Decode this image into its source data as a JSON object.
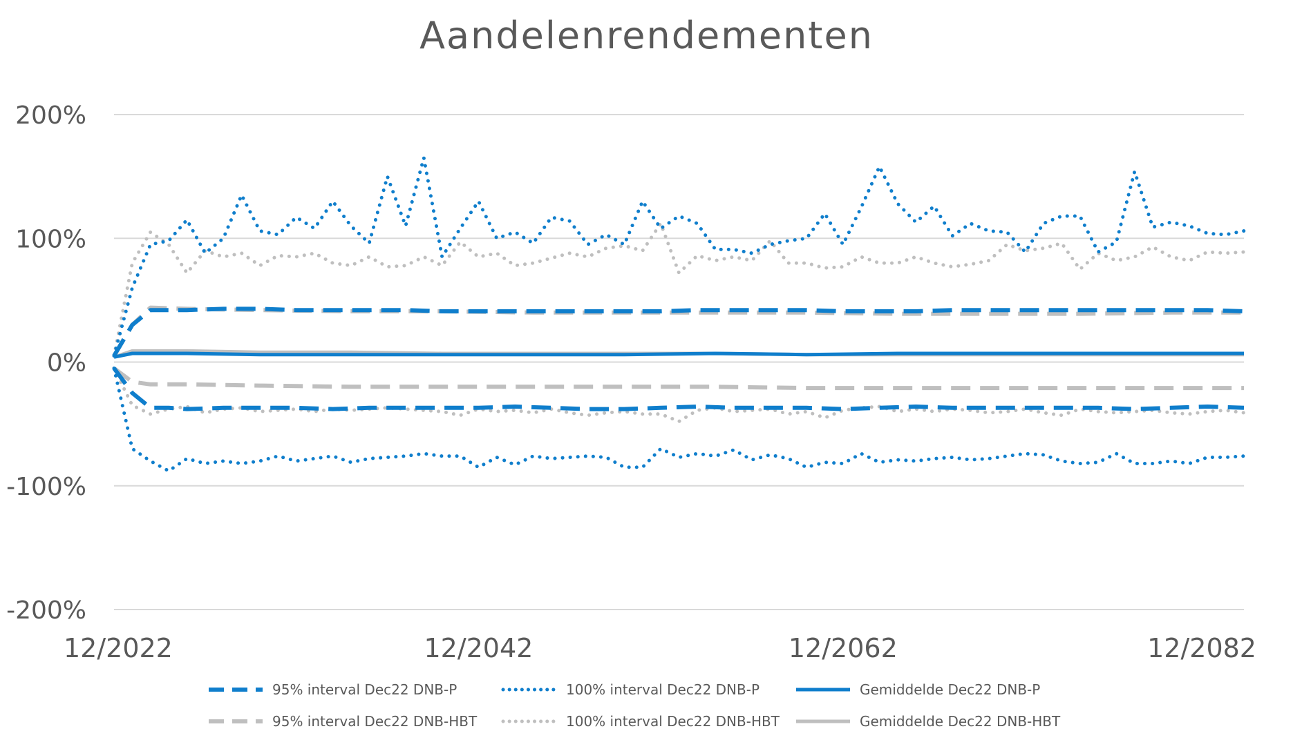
{
  "chart_data": {
    "type": "line",
    "title": "Aandelenrendementen",
    "xlabel": "",
    "ylabel": "",
    "ylim": [
      -200,
      200
    ],
    "y_ticks": [
      "200%",
      "100%",
      "0%",
      "-100%",
      "-200%"
    ],
    "y_tick_values": [
      200,
      100,
      0,
      -100,
      -200
    ],
    "x_tick_labels": [
      "12/2022",
      "12/2042",
      "12/2062",
      "12/2082"
    ],
    "x_tick_years": [
      2022,
      2042,
      2062,
      2082
    ],
    "xlim": [
      2022,
      2084
    ],
    "grid": true,
    "legend_position": "bottom",
    "series": [
      {
        "name": "95% interval Dec22 DNB-P",
        "color": "#0f7ecc",
        "style": "dashed",
        "x": [
          2022,
          2023,
          2024,
          2025,
          2026,
          2028,
          2030,
          2032,
          2034,
          2036,
          2038,
          2040,
          2042,
          2044,
          2046,
          2048,
          2050,
          2052,
          2054,
          2056,
          2058,
          2060,
          2062,
          2064,
          2066,
          2068,
          2070,
          2072,
          2074,
          2076,
          2078,
          2080,
          2082,
          2084
        ],
        "values": [
          5,
          30,
          42,
          42,
          42,
          43,
          43,
          42,
          42,
          42,
          42,
          41,
          41,
          41,
          41,
          41,
          41,
          41,
          42,
          42,
          42,
          42,
          41,
          41,
          41,
          42,
          42,
          42,
          42,
          42,
          42,
          42,
          42,
          41
        ]
      },
      {
        "name": "95% interval Dec22 DNB-P (lower)",
        "color": "#0f7ecc",
        "style": "dashed",
        "x": [
          2022,
          2023,
          2024,
          2025,
          2026,
          2028,
          2030,
          2032,
          2034,
          2036,
          2038,
          2040,
          2042,
          2044,
          2046,
          2048,
          2050,
          2052,
          2054,
          2056,
          2058,
          2060,
          2062,
          2064,
          2066,
          2068,
          2070,
          2072,
          2074,
          2076,
          2078,
          2080,
          2082,
          2084
        ],
        "values": [
          -5,
          -25,
          -37,
          -37,
          -38,
          -37,
          -37,
          -37,
          -38,
          -37,
          -37,
          -37,
          -37,
          -36,
          -37,
          -38,
          -38,
          -37,
          -36,
          -37,
          -37,
          -37,
          -38,
          -37,
          -36,
          -37,
          -37,
          -37,
          -37,
          -37,
          -38,
          -37,
          -36,
          -37
        ]
      },
      {
        "name": "100% interval Dec22 DNB-P",
        "color": "#0f7ecc",
        "style": "dotted",
        "x": [
          2022,
          2023,
          2024,
          2025,
          2026,
          2027,
          2028,
          2029,
          2030,
          2031,
          2032,
          2033,
          2034,
          2035,
          2036,
          2037,
          2038,
          2039,
          2040,
          2041,
          2042,
          2043,
          2044,
          2045,
          2046,
          2047,
          2048,
          2049,
          2050,
          2051,
          2052,
          2053,
          2054,
          2055,
          2056,
          2057,
          2058,
          2059,
          2060,
          2061,
          2062,
          2063,
          2064,
          2065,
          2066,
          2067,
          2068,
          2069,
          2070,
          2071,
          2072,
          2073,
          2074,
          2075,
          2076,
          2077,
          2078,
          2079,
          2080,
          2081,
          2082,
          2083,
          2084
        ],
        "values": [
          5,
          60,
          95,
          98,
          115,
          88,
          100,
          135,
          106,
          103,
          117,
          108,
          130,
          110,
          96,
          150,
          110,
          165,
          85,
          108,
          130,
          100,
          105,
          96,
          117,
          114,
          95,
          103,
          95,
          130,
          108,
          118,
          112,
          91,
          91,
          88,
          95,
          98,
          100,
          120,
          95,
          125,
          158,
          128,
          113,
          126,
          102,
          112,
          106,
          105,
          89,
          112,
          118,
          118,
          89,
          97,
          154,
          109,
          113,
          110,
          104,
          103,
          106
        ]
      },
      {
        "name": "100% interval Dec22 DNB-P (lower)",
        "color": "#0f7ecc",
        "style": "dotted",
        "x": [
          2022,
          2023,
          2024,
          2025,
          2026,
          2027,
          2028,
          2029,
          2030,
          2031,
          2032,
          2033,
          2034,
          2035,
          2036,
          2037,
          2038,
          2039,
          2040,
          2041,
          2042,
          2043,
          2044,
          2045,
          2046,
          2047,
          2048,
          2049,
          2050,
          2051,
          2052,
          2053,
          2054,
          2055,
          2056,
          2057,
          2058,
          2059,
          2060,
          2061,
          2062,
          2063,
          2064,
          2065,
          2066,
          2067,
          2068,
          2069,
          2070,
          2071,
          2072,
          2073,
          2074,
          2075,
          2076,
          2077,
          2078,
          2079,
          2080,
          2081,
          2082,
          2083,
          2084
        ],
        "values": [
          -5,
          -70,
          -80,
          -88,
          -78,
          -82,
          -80,
          -82,
          -80,
          -76,
          -80,
          -78,
          -76,
          -81,
          -78,
          -77,
          -76,
          -74,
          -76,
          -76,
          -85,
          -77,
          -83,
          -76,
          -78,
          -77,
          -76,
          -77,
          -85,
          -85,
          -70,
          -77,
          -74,
          -76,
          -71,
          -79,
          -75,
          -78,
          -85,
          -81,
          -82,
          -74,
          -81,
          -79,
          -80,
          -78,
          -77,
          -79,
          -78,
          -76,
          -74,
          -75,
          -80,
          -82,
          -81,
          -74,
          -82,
          -82,
          -80,
          -82,
          -77,
          -77,
          -76
        ]
      },
      {
        "name": "Gemiddelde Dec22 DNB-P",
        "color": "#0f7ecc",
        "style": "solid",
        "x": [
          2022,
          2023,
          2026,
          2030,
          2035,
          2040,
          2045,
          2050,
          2055,
          2060,
          2065,
          2070,
          2075,
          2080,
          2084
        ],
        "values": [
          4,
          7,
          7,
          6,
          6,
          6,
          6,
          6,
          7,
          6,
          7,
          7,
          7,
          7,
          7
        ]
      },
      {
        "name": "95% interval Dec22 DNB-HBT",
        "color": "#bfbfbf",
        "style": "dashed",
        "x": [
          2022,
          2023,
          2024,
          2026,
          2030,
          2035,
          2040,
          2045,
          2050,
          2055,
          2060,
          2065,
          2070,
          2075,
          2080,
          2084
        ],
        "values": [
          5,
          30,
          44,
          43,
          42,
          41,
          41,
          40,
          40,
          40,
          40,
          39,
          39,
          39,
          40,
          40
        ]
      },
      {
        "name": "95% interval Dec22 DNB-HBT (lower)",
        "color": "#bfbfbf",
        "style": "dashed",
        "x": [
          2022,
          2023,
          2024,
          2026,
          2030,
          2035,
          2040,
          2045,
          2050,
          2055,
          2060,
          2065,
          2070,
          2075,
          2080,
          2084
        ],
        "values": [
          -5,
          -16,
          -18,
          -18,
          -19,
          -20,
          -20,
          -20,
          -20,
          -20,
          -21,
          -21,
          -21,
          -21,
          -21,
          -21
        ]
      },
      {
        "name": "100% interval Dec22 DNB-HBT",
        "color": "#bfbfbf",
        "style": "dotted",
        "x": [
          2022,
          2023,
          2024,
          2025,
          2026,
          2027,
          2028,
          2029,
          2030,
          2031,
          2032,
          2033,
          2034,
          2035,
          2036,
          2037,
          2038,
          2039,
          2040,
          2041,
          2042,
          2043,
          2044,
          2045,
          2046,
          2047,
          2048,
          2049,
          2050,
          2051,
          2052,
          2053,
          2054,
          2055,
          2056,
          2057,
          2058,
          2059,
          2060,
          2061,
          2062,
          2063,
          2064,
          2065,
          2066,
          2067,
          2068,
          2069,
          2070,
          2071,
          2072,
          2073,
          2074,
          2075,
          2076,
          2077,
          2078,
          2079,
          2080,
          2081,
          2082,
          2083,
          2084
        ],
        "values": [
          5,
          80,
          105,
          95,
          72,
          90,
          85,
          88,
          78,
          86,
          85,
          88,
          80,
          78,
          85,
          77,
          78,
          85,
          78,
          97,
          85,
          88,
          78,
          80,
          84,
          88,
          85,
          92,
          94,
          90,
          112,
          72,
          86,
          82,
          85,
          82,
          98,
          80,
          80,
          76,
          77,
          85,
          80,
          80,
          85,
          80,
          77,
          79,
          82,
          95,
          90,
          92,
          96,
          75,
          88,
          82,
          85,
          93,
          85,
          82,
          89,
          88,
          89
        ]
      },
      {
        "name": "100% interval Dec22 DNB-HBT (lower)",
        "color": "#bfbfbf",
        "style": "dotted",
        "x": [
          2022,
          2023,
          2024,
          2025,
          2026,
          2027,
          2028,
          2029,
          2030,
          2031,
          2032,
          2033,
          2034,
          2035,
          2036,
          2037,
          2038,
          2039,
          2040,
          2041,
          2042,
          2043,
          2044,
          2045,
          2046,
          2047,
          2048,
          2049,
          2050,
          2051,
          2052,
          2053,
          2054,
          2055,
          2056,
          2057,
          2058,
          2059,
          2060,
          2061,
          2062,
          2063,
          2064,
          2065,
          2066,
          2067,
          2068,
          2069,
          2070,
          2071,
          2072,
          2073,
          2074,
          2075,
          2076,
          2077,
          2078,
          2079,
          2080,
          2081,
          2082,
          2083,
          2084
        ],
        "values": [
          -5,
          -35,
          -42,
          -38,
          -36,
          -41,
          -38,
          -37,
          -40,
          -39,
          -38,
          -40,
          -38,
          -39,
          -38,
          -37,
          -38,
          -39,
          -40,
          -43,
          -38,
          -40,
          -39,
          -41,
          -38,
          -41,
          -43,
          -41,
          -40,
          -42,
          -42,
          -48,
          -39,
          -37,
          -40,
          -39,
          -38,
          -42,
          -40,
          -45,
          -39,
          -37,
          -36,
          -40,
          -38,
          -40,
          -38,
          -39,
          -41,
          -40,
          -38,
          -41,
          -43,
          -38,
          -40,
          -41,
          -40,
          -39,
          -41,
          -42,
          -40,
          -39,
          -41
        ]
      },
      {
        "name": "Gemiddelde Dec22 DNB-HBT",
        "color": "#bfbfbf",
        "style": "solid",
        "x": [
          2022,
          2023,
          2026,
          2030,
          2035,
          2040,
          2045,
          2050,
          2055,
          2060,
          2065,
          2070,
          2075,
          2080,
          2084
        ],
        "values": [
          4,
          9,
          9,
          8,
          8,
          7,
          7,
          7,
          7,
          6,
          6,
          6,
          6,
          6,
          6
        ]
      }
    ],
    "legend": [
      {
        "label": "95% interval Dec22 DNB-P",
        "color": "#0f7ecc",
        "style": "dashed"
      },
      {
        "label": "100% interval Dec22 DNB-P",
        "color": "#0f7ecc",
        "style": "dotted"
      },
      {
        "label": "Gemiddelde Dec22 DNB-P",
        "color": "#0f7ecc",
        "style": "solid"
      },
      {
        "label": "95% interval Dec22 DNB-HBT",
        "color": "#bfbfbf",
        "style": "dashed"
      },
      {
        "label": "100% interval Dec22 DNB-HBT",
        "color": "#bfbfbf",
        "style": "dotted"
      },
      {
        "label": "Gemiddelde Dec22 DNB-HBT",
        "color": "#bfbfbf",
        "style": "solid"
      }
    ]
  }
}
